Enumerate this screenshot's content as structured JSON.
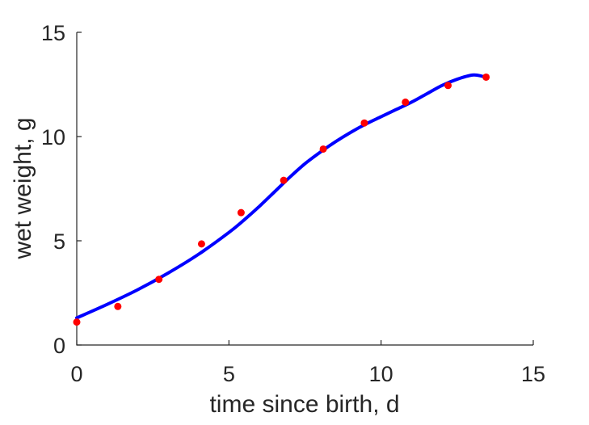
{
  "chart_data": {
    "type": "scatter",
    "title": "",
    "xlabel": "time since birth, d",
    "ylabel": "wet weight, g",
    "xlim": [
      0,
      15
    ],
    "ylim": [
      0,
      15
    ],
    "xticks": [
      0,
      5,
      10,
      15
    ],
    "yticks": [
      0,
      5,
      10,
      15
    ],
    "xtick_labels": [
      "0",
      "5",
      "10",
      "15"
    ],
    "ytick_labels": [
      "0",
      "5",
      "10",
      "15"
    ],
    "grid": false,
    "legend": null,
    "series": [
      {
        "kind": "points",
        "color": "#ff0000",
        "x": [
          0.0,
          1.35,
          2.7,
          4.1,
          5.4,
          6.8,
          8.1,
          9.45,
          10.8,
          12.2,
          13.45
        ],
        "y": [
          1.1,
          1.85,
          3.15,
          4.85,
          6.35,
          7.9,
          9.4,
          10.65,
          11.65,
          12.45,
          12.85
        ]
      },
      {
        "kind": "line",
        "color": "#0000ff",
        "x": [
          0.0,
          1.0,
          2.0,
          3.0,
          4.0,
          5.0,
          5.5,
          6.0,
          6.5,
          7.0,
          7.5,
          8.0,
          8.5,
          9.0,
          9.5,
          10.0,
          10.5,
          11.0,
          11.5,
          12.0,
          12.5,
          13.0,
          13.3,
          13.5
        ],
        "y": [
          1.3,
          1.95,
          2.65,
          3.45,
          4.35,
          5.4,
          6.0,
          6.65,
          7.35,
          8.05,
          8.7,
          9.25,
          9.75,
          10.2,
          10.6,
          10.95,
          11.3,
          11.65,
          12.05,
          12.45,
          12.75,
          12.95,
          12.9,
          12.8
        ]
      }
    ]
  }
}
